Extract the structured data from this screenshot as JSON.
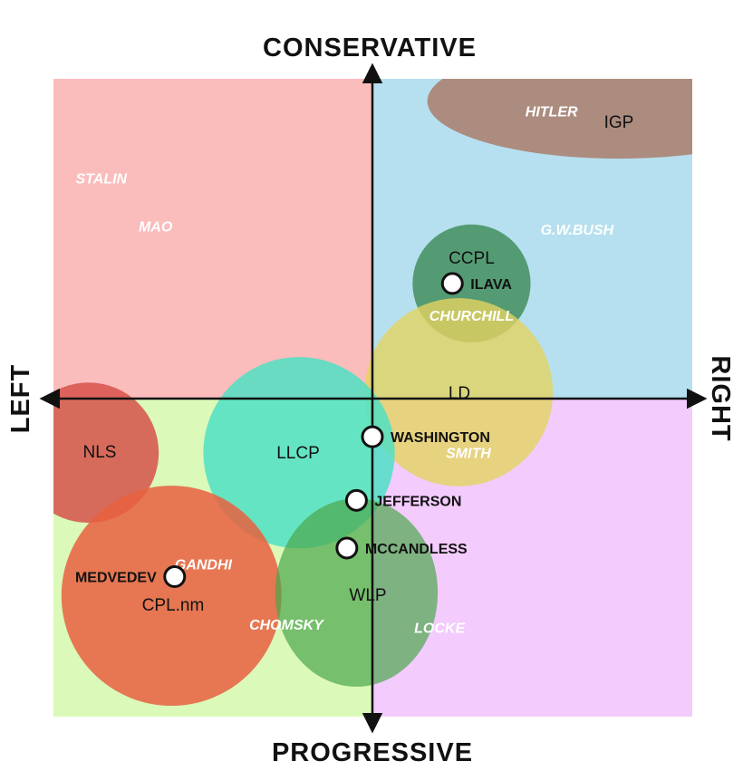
{
  "chart_data": {
    "type": "scatter",
    "title": "",
    "axes": {
      "top": "CONSERVATIVE",
      "bottom": "PROGRESSIVE",
      "left": "LEFT",
      "right": "RIGHT",
      "xlim": [
        -10,
        10
      ],
      "ylim": [
        -10,
        10
      ],
      "grid": false
    },
    "quadrants": [
      {
        "name": "conservative-left",
        "color": "#fbbcbc"
      },
      {
        "name": "conservative-right",
        "color": "#b6e0ef"
      },
      {
        "name": "progressive-left",
        "color": "#dbf9b8"
      },
      {
        "name": "progressive-right",
        "color": "#f3cbfd"
      }
    ],
    "parties": [
      {
        "label": "IGP",
        "x": 7.7,
        "y": 9.3,
        "rx": 6.0,
        "ry": 1.8,
        "color": "#a8705a",
        "opacity": 0.75
      },
      {
        "label": "CCPL",
        "x": 3.1,
        "y": 3.6,
        "rx": 1.85,
        "ry": 1.85,
        "color": "#3c8a55",
        "opacity": 0.8
      },
      {
        "label": "LD",
        "x": 2.7,
        "y": 0.2,
        "rx": 2.95,
        "ry": 2.95,
        "color": "#e4d360",
        "opacity": 0.8
      },
      {
        "label": "NLS",
        "x": -8.9,
        "y": -1.7,
        "rx": 2.2,
        "ry": 2.2,
        "color": "#d6524a",
        "opacity": 0.85
      },
      {
        "label": "LLCP",
        "x": -2.3,
        "y": -1.7,
        "rx": 3.0,
        "ry": 3.0,
        "color": "#4fe0c4",
        "opacity": 0.85
      },
      {
        "label": "CPL.nm",
        "x": -6.3,
        "y": -6.2,
        "rx": 3.45,
        "ry": 3.45,
        "color": "#e8603f",
        "opacity": 0.85
      },
      {
        "label": "WLP",
        "x": -0.5,
        "y": -6.1,
        "rx": 2.55,
        "ry": 2.95,
        "color": "#4ba64b",
        "opacity": 0.7
      }
    ],
    "individuals": [
      {
        "label": "ILAVA",
        "x": 2.5,
        "y": 3.6
      },
      {
        "label": "WASHINGTON",
        "x": 0.0,
        "y": -1.2
      },
      {
        "label": "JEFFERSON",
        "x": -0.5,
        "y": -3.2
      },
      {
        "label": "MCCANDLESS",
        "x": -0.8,
        "y": -4.7
      },
      {
        "label": "MEDVEDEV",
        "x": -6.2,
        "y": -5.6
      }
    ],
    "reference_figures": [
      {
        "label": "HITLER",
        "x": 5.6,
        "y": 9.0
      },
      {
        "label": "STALIN",
        "x": -8.5,
        "y": 6.9
      },
      {
        "label": "MAO",
        "x": -6.8,
        "y": 5.4
      },
      {
        "label": "G.W.BUSH",
        "x": 6.4,
        "y": 5.3
      },
      {
        "label": "CHURCHILL",
        "x": 3.1,
        "y": 2.6
      },
      {
        "label": "SMITH",
        "x": 3.0,
        "y": -1.7
      },
      {
        "label": "GANDHI",
        "x": -5.3,
        "y": -5.2
      },
      {
        "label": "CHOMSKY",
        "x": -2.7,
        "y": -7.1
      },
      {
        "label": "LOCKE",
        "x": 2.1,
        "y": -7.2
      }
    ]
  }
}
